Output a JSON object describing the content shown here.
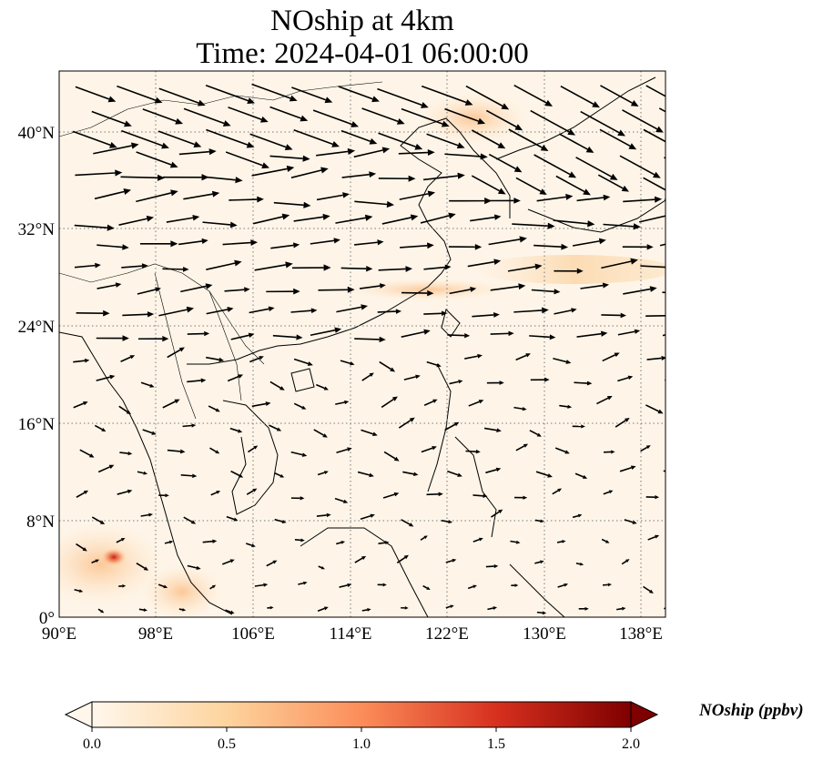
{
  "title_line1": "NOship at 4km",
  "title_line2": "Time: 2024-04-01 06:00:00",
  "map": {
    "lon_range": [
      90,
      140
    ],
    "lat_range": [
      0,
      45
    ],
    "x_ticks": [
      "90°E",
      "98°E",
      "106°E",
      "114°E",
      "122°E",
      "130°E",
      "138°E"
    ],
    "y_ticks": [
      "0°",
      "8°N",
      "16°N",
      "24°N",
      "32°N",
      "40°N"
    ],
    "gridlines": "dotted",
    "features": [
      "coastlines",
      "country borders",
      "wind vectors"
    ],
    "field": "NOship concentration"
  },
  "colorbar": {
    "label": "NOship (ppbv)",
    "range": [
      0,
      2
    ],
    "ticks": [
      "0.0",
      "0.5",
      "1.0",
      "1.5",
      "2.0"
    ],
    "colormap": "OrRd",
    "extend": "both",
    "colors": [
      "#fff7ec",
      "#fdd49e",
      "#fc8d59",
      "#d7301f",
      "#7f0000"
    ]
  }
}
